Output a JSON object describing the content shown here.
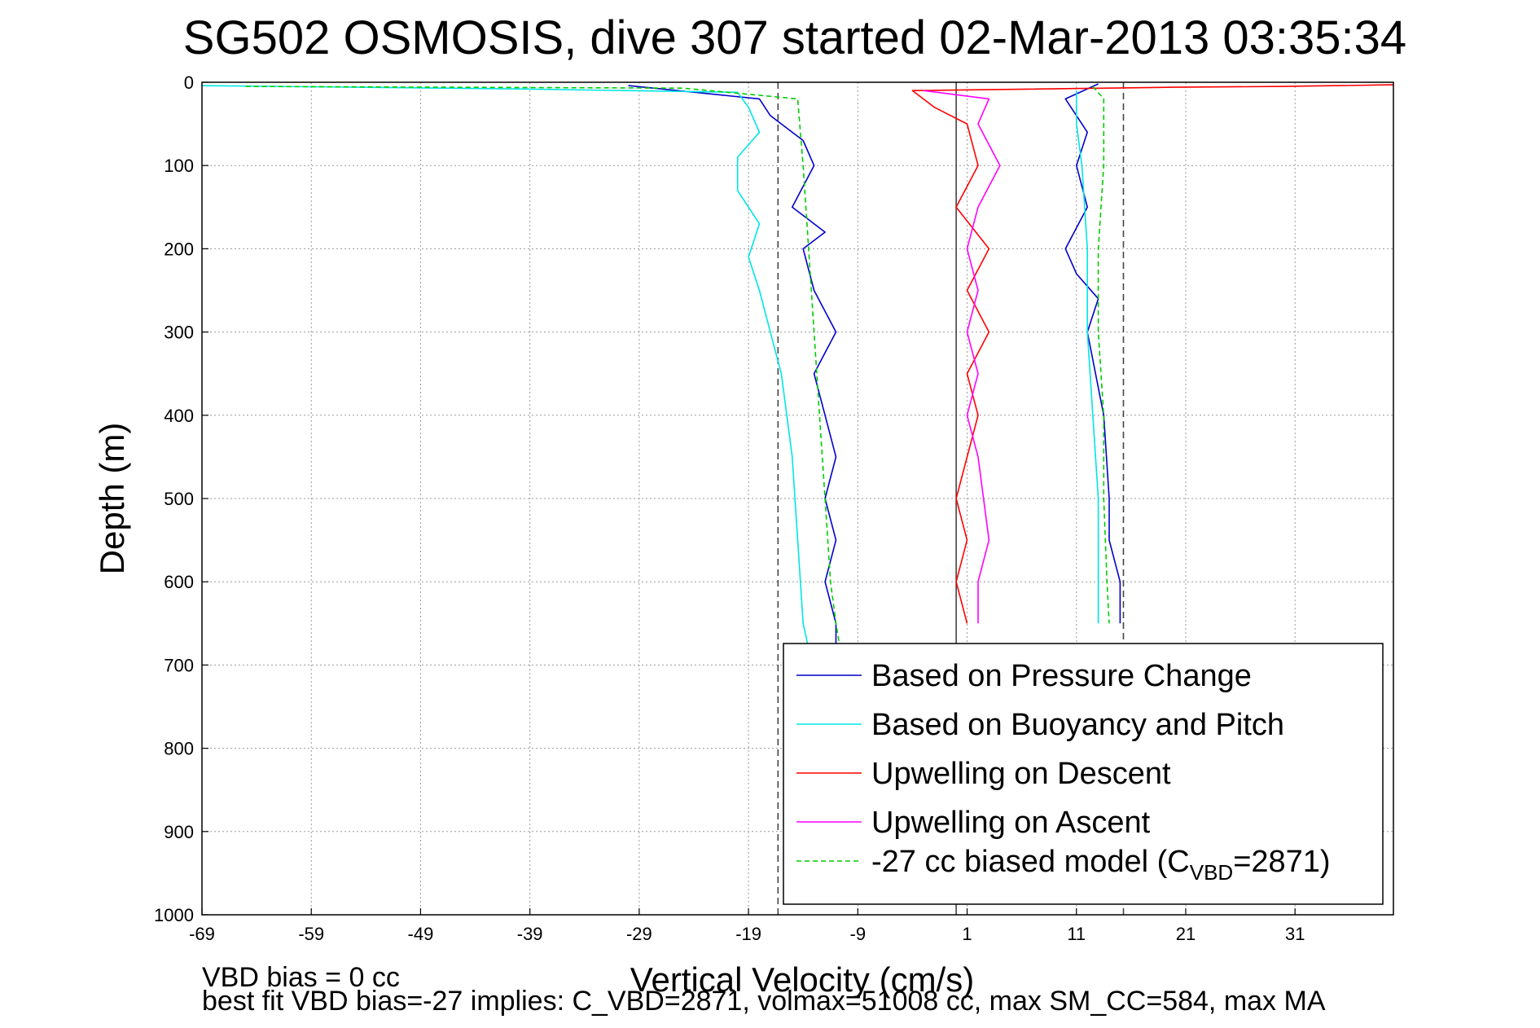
{
  "chart_data": {
    "type": "line",
    "title": "SG502 OSMOSIS, dive 307 started 02-Mar-2013 03:35:34",
    "xlabel": "Vertical Velocity (cm/s)",
    "ylabel": "Depth (m)",
    "xlim": [
      -69,
      40
    ],
    "ylim": [
      1000,
      0
    ],
    "y_reversed": true,
    "grid": true,
    "xticks": [
      -69,
      -59,
      -49,
      -39,
      -29,
      -19,
      -9,
      1,
      11,
      21,
      31
    ],
    "yticks": [
      0,
      100,
      200,
      300,
      400,
      500,
      600,
      700,
      800,
      900,
      1000
    ],
    "reference_lines": [
      {
        "style": "dashed",
        "x": -16.3
      },
      {
        "style": "solid",
        "x": 0
      },
      {
        "style": "dashed",
        "x": 15.3
      }
    ],
    "legend": {
      "placement": "bottom-right",
      "entries": [
        {
          "text": "Based on Pressure Change",
          "color": "#0000cc",
          "dash": "solid"
        },
        {
          "text": "Based on Buoyancy and Pitch",
          "color": "#00e5e5",
          "dash": "solid"
        },
        {
          "text": "Upwelling on Descent",
          "color": "#ff0000",
          "dash": "solid"
        },
        {
          "text": "Upwelling on Ascent",
          "color": "#ff00ff",
          "dash": "solid"
        },
        {
          "text_main": "-27 cc biased model (C",
          "text_sub": "VBD",
          "text_tail": "=2871)",
          "color": "#00cc00",
          "dash": "dashed"
        }
      ]
    },
    "series": [
      {
        "name": "Based on Pressure Change",
        "color": "#0000cc",
        "dash": "solid",
        "x": [
          -30,
          -18,
          -17,
          -14,
          -13,
          -15,
          -12,
          -14,
          -13,
          -11,
          -13,
          -12,
          -11,
          -12,
          -11,
          -12,
          -11,
          -11,
          -10.5,
          -10
        ],
        "y": [
          4,
          20,
          40,
          70,
          100,
          150,
          180,
          200,
          250,
          300,
          350,
          400,
          450,
          500,
          550,
          600,
          650,
          680,
          690,
          700
        ]
      },
      {
        "name": "Based on Pressure Change",
        "color": "#0000cc",
        "dash": "solid",
        "x": [
          13,
          10,
          12,
          11,
          12,
          10,
          11,
          13,
          12,
          13.5,
          14,
          14,
          15,
          15
        ],
        "y": [
          2,
          20,
          60,
          100,
          150,
          200,
          230,
          260,
          300,
          400,
          500,
          550,
          600,
          650
        ]
      },
      {
        "name": "Based on Buoyancy and Pitch",
        "color": "#00e5e5",
        "dash": "solid",
        "x": [
          -69,
          -40,
          -20,
          -19,
          -18,
          -20,
          -20,
          -18,
          -19,
          -18,
          -17,
          -16,
          -15,
          -14.5,
          -14,
          -13.5
        ],
        "y": [
          4,
          8,
          12,
          30,
          60,
          90,
          130,
          170,
          210,
          250,
          300,
          350,
          450,
          550,
          650,
          680
        ]
      },
      {
        "name": "Based on Buoyancy and Pitch",
        "color": "#00e5e5",
        "dash": "solid",
        "x": [
          11,
          11,
          11.5,
          12,
          12,
          12.5,
          13,
          13,
          13
        ],
        "y": [
          10,
          50,
          100,
          200,
          300,
          400,
          500,
          600,
          650
        ]
      },
      {
        "name": "Upwelling on Descent",
        "color": "#ff0000",
        "dash": "solid",
        "x": [
          40,
          30,
          20,
          -4,
          -2,
          1,
          2,
          0,
          3,
          1,
          3,
          1,
          2,
          0,
          1,
          0,
          1
        ],
        "y": [
          3,
          5,
          6,
          10,
          30,
          50,
          100,
          150,
          200,
          250,
          300,
          350,
          400,
          500,
          550,
          600,
          650
        ]
      },
      {
        "name": "Upwelling on Ascent",
        "color": "#ff00ff",
        "dash": "solid",
        "x": [
          -3,
          3,
          2,
          4,
          2,
          1,
          2,
          1,
          2,
          1,
          2,
          3,
          2,
          2
        ],
        "y": [
          10,
          20,
          50,
          100,
          150,
          200,
          250,
          300,
          350,
          400,
          450,
          550,
          600,
          650
        ]
      },
      {
        "name": "-27 cc biased model (CVBD=2871)",
        "color": "#00cc00",
        "dash": "dashed",
        "x": [
          -65,
          -25,
          -14.5,
          -14,
          -13.5,
          -13,
          -12.5,
          -12,
          -11.5,
          -11,
          -10.5
        ],
        "y": [
          5,
          7,
          20,
          100,
          200,
          300,
          400,
          500,
          600,
          650,
          690
        ]
      },
      {
        "name": "-27 cc biased model (CVBD=2871)",
        "color": "#00cc00",
        "dash": "dashed",
        "x": [
          12.5,
          13.5,
          13.5,
          13,
          13,
          13.5,
          13.5,
          13.8,
          14
        ],
        "y": [
          5,
          20,
          100,
          200,
          300,
          400,
          500,
          600,
          650
        ]
      }
    ],
    "annotations": [
      "VBD bias = 0 cc",
      "best fit VBD bias=-27 implies: C_VBD=2871, volmax=51008 cc, max SM_CC=584, max MA"
    ]
  }
}
